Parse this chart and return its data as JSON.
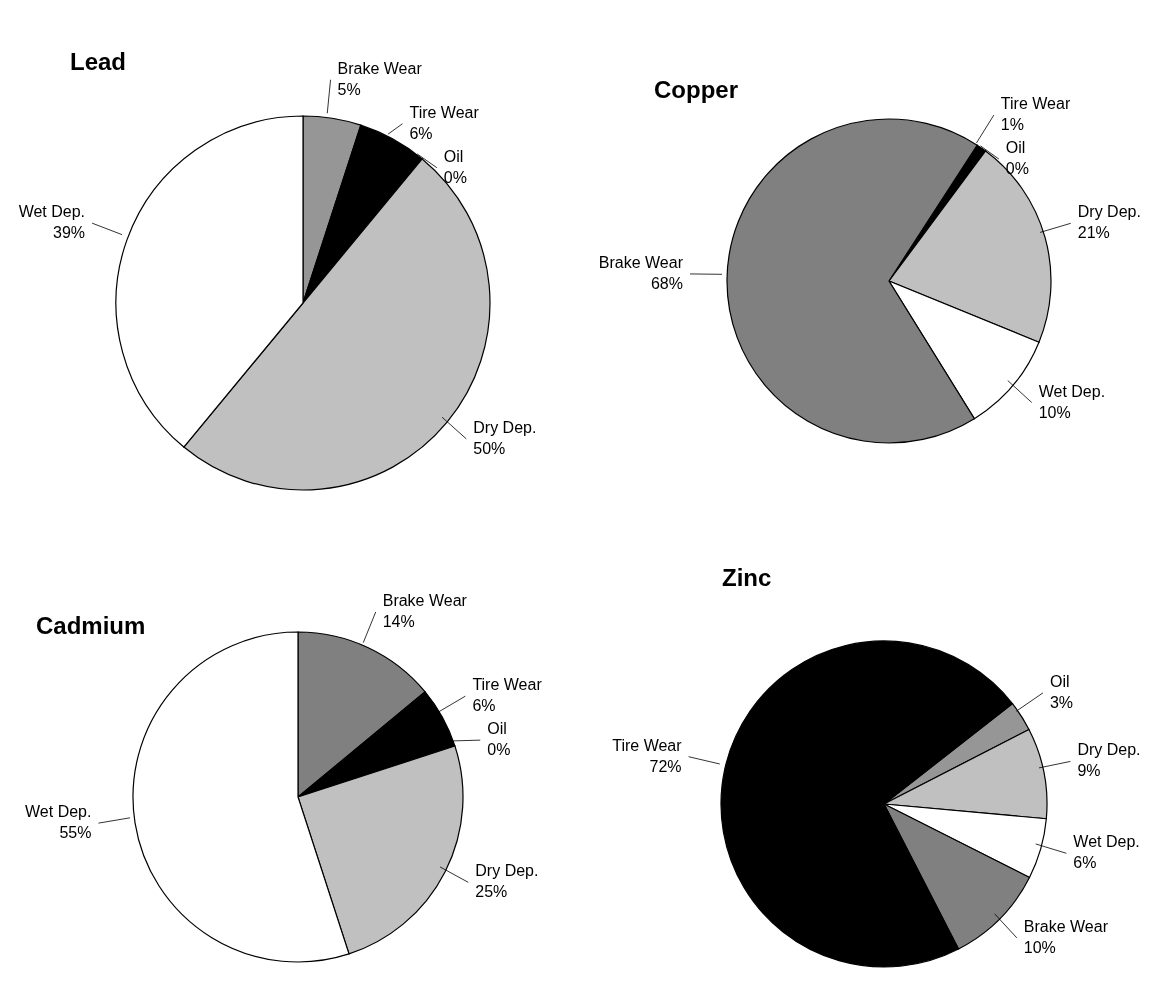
{
  "chart_data": [
    {
      "type": "pie",
      "title": "Lead",
      "categories": [
        "Brake Wear",
        "Tire Wear",
        "Oil",
        "Dry Dep.",
        "Wet Dep."
      ],
      "values": [
        5,
        6,
        0,
        50,
        39
      ],
      "value_labels": [
        "5%",
        "6%",
        "0%",
        "50%",
        "39%"
      ],
      "colors": [
        "#969696",
        "#000000",
        "#808080",
        "#c0c0c0",
        "#ffffff"
      ]
    },
    {
      "type": "pie",
      "title": "Copper",
      "categories": [
        "Tire Wear",
        "Oil",
        "Dry Dep.",
        "Wet Dep.",
        "Brake Wear"
      ],
      "values": [
        1,
        0,
        21,
        10,
        68
      ],
      "value_labels": [
        "1%",
        "0%",
        "21%",
        "10%",
        "68%"
      ],
      "colors": [
        "#000000",
        "#969696",
        "#c0c0c0",
        "#ffffff",
        "#808080"
      ]
    },
    {
      "type": "pie",
      "title": "Cadmium",
      "categories": [
        "Brake Wear",
        "Tire Wear",
        "Oil",
        "Dry Dep.",
        "Wet Dep."
      ],
      "values": [
        14,
        6,
        0,
        25,
        55
      ],
      "value_labels": [
        "14%",
        "6%",
        "0%",
        "25%",
        "55%"
      ],
      "colors": [
        "#808080",
        "#000000",
        "#969696",
        "#c0c0c0",
        "#ffffff"
      ]
    },
    {
      "type": "pie",
      "title": "Zinc",
      "categories": [
        "Oil",
        "Dry Dep.",
        "Wet Dep.",
        "Brake Wear",
        "Tire Wear"
      ],
      "values": [
        3,
        9,
        6,
        10,
        72
      ],
      "value_labels": [
        "3%",
        "9%",
        "6%",
        "10%",
        "72%"
      ],
      "colors": [
        "#969696",
        "#c0c0c0",
        "#ffffff",
        "#808080",
        "#000000"
      ]
    }
  ]
}
